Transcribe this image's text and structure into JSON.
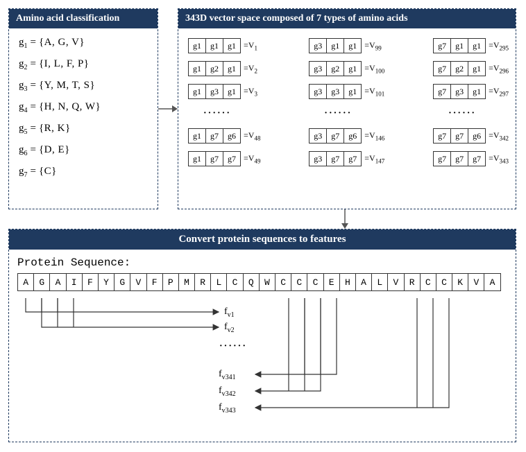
{
  "colors": {
    "header_bg": "#1f3a5f",
    "header_text": "#ffffff",
    "border": "#333333",
    "dash": "#1f3a5f",
    "arrow": "#555555"
  },
  "panel1": {
    "title": "Amino acid classification",
    "groups": [
      {
        "name": "g",
        "sub": "1",
        "set": "{A, G, V}"
      },
      {
        "name": "g",
        "sub": "2",
        "set": "{I, L, F, P}"
      },
      {
        "name": "g",
        "sub": "3",
        "set": "{Y, M, T, S}"
      },
      {
        "name": "g",
        "sub": "4",
        "set": "{H, N, Q, W}"
      },
      {
        "name": "g",
        "sub": "5",
        "set": "{R, K}"
      },
      {
        "name": "g",
        "sub": "6",
        "set": "{D, E}"
      },
      {
        "name": "g",
        "sub": "7",
        "set": "{C}"
      }
    ]
  },
  "panel2": {
    "title": "343D vector space composed of 7 types of amino acids",
    "columns": [
      {
        "rows": [
          {
            "cells": [
              "g1",
              "g1",
              "g1"
            ],
            "v": "1"
          },
          {
            "cells": [
              "g1",
              "g2",
              "g1"
            ],
            "v": "2"
          },
          {
            "cells": [
              "g1",
              "g3",
              "g1"
            ],
            "v": "3"
          }
        ],
        "rows2": [
          {
            "cells": [
              "g1",
              "g7",
              "g6"
            ],
            "v": "48"
          },
          {
            "cells": [
              "g1",
              "g7",
              "g7"
            ],
            "v": "49"
          }
        ]
      },
      {
        "rows": [
          {
            "cells": [
              "g3",
              "g1",
              "g1"
            ],
            "v": "99"
          },
          {
            "cells": [
              "g3",
              "g2",
              "g1"
            ],
            "v": "100"
          },
          {
            "cells": [
              "g3",
              "g3",
              "g1"
            ],
            "v": "101"
          }
        ],
        "rows2": [
          {
            "cells": [
              "g3",
              "g7",
              "g6"
            ],
            "v": "146"
          },
          {
            "cells": [
              "g3",
              "g7",
              "g7"
            ],
            "v": "147"
          }
        ]
      },
      {
        "rows": [
          {
            "cells": [
              "g7",
              "g1",
              "g1"
            ],
            "v": "295"
          },
          {
            "cells": [
              "g7",
              "g2",
              "g1"
            ],
            "v": "296"
          },
          {
            "cells": [
              "g7",
              "g3",
              "g1"
            ],
            "v": "297"
          }
        ],
        "rows2": [
          {
            "cells": [
              "g7",
              "g7",
              "g6"
            ],
            "v": "342"
          },
          {
            "cells": [
              "g7",
              "g7",
              "g7"
            ],
            "v": "343"
          }
        ]
      }
    ],
    "dots": "······"
  },
  "panel3": {
    "title": "Convert protein sequences to features",
    "seq_label": "Protein Sequence:",
    "sequence": [
      "A",
      "G",
      "A",
      "I",
      "F",
      "Y",
      "G",
      "V",
      "F",
      "P",
      "M",
      "R",
      "L",
      "C",
      "Q",
      "W",
      "C",
      "C",
      "C",
      "E",
      "H",
      "A",
      "L",
      "V",
      "R",
      "C",
      "C",
      "K",
      "V",
      "A"
    ],
    "features": [
      {
        "label": "f",
        "sub": "v1"
      },
      {
        "label": "f",
        "sub": "v2"
      },
      {
        "label": "f",
        "sub": "v341"
      },
      {
        "label": "f",
        "sub": "v342"
      },
      {
        "label": "f",
        "sub": "v343"
      }
    ],
    "dots": "······"
  }
}
